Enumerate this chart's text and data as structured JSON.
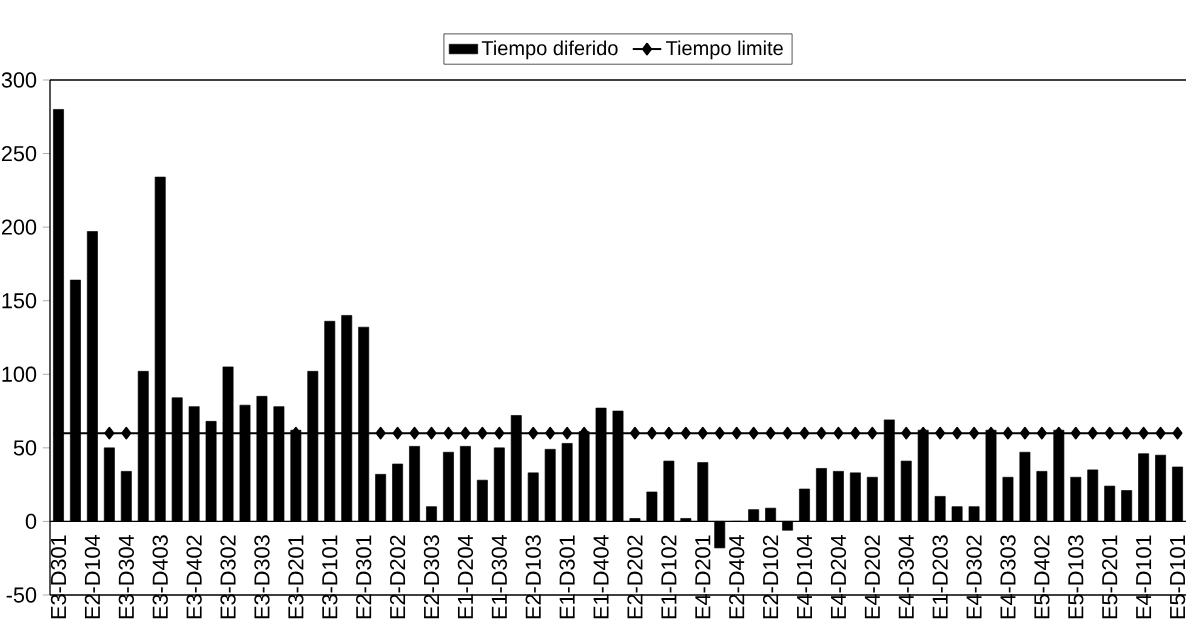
{
  "chart_data": {
    "type": "bar",
    "categories": [
      "E3-D301",
      null,
      "E2-D104",
      null,
      "E3-D304",
      null,
      "E3-D403",
      null,
      "E3-D402",
      null,
      "E3-D302",
      null,
      "E3-D303",
      null,
      "E3-D201",
      null,
      "E3-D101",
      null,
      "E2-D301",
      null,
      "E2-D202",
      null,
      "E2-D303",
      null,
      "E1-D204",
      null,
      "E1-D304",
      null,
      "E2-D103",
      null,
      "E1-D301",
      null,
      "E1-D404",
      null,
      "E2-D202",
      null,
      "E1-D102",
      null,
      "E4-D201",
      null,
      "E2-D404",
      null,
      "E2-D102",
      null,
      "E4-D104",
      null,
      "E4-D204",
      null,
      "E4-D202",
      null,
      "E4-D304",
      null,
      "E1-D203",
      null,
      "E4-D302",
      null,
      "E4-D303",
      null,
      "E5-D402",
      null,
      "E5-D103",
      null,
      "E5-D201",
      null,
      "E4-D101",
      null,
      "E5-D101"
    ],
    "series": [
      {
        "name": "Tiempo diferido",
        "color": "#000000",
        "values": [
          280,
          164,
          197,
          50,
          34,
          102,
          234,
          84,
          78,
          68,
          105,
          79,
          85,
          78,
          62,
          102,
          136,
          140,
          132,
          32,
          39,
          51,
          10,
          47,
          51,
          28,
          50,
          72,
          33,
          49,
          53,
          61,
          77,
          75,
          2,
          20,
          41,
          2,
          40,
          -18,
          0,
          8,
          9,
          -6,
          22,
          36,
          34,
          33,
          30,
          69,
          41,
          62,
          17,
          10,
          10,
          62,
          30,
          47,
          34,
          62,
          30,
          35,
          24,
          21,
          46,
          45,
          37
        ]
      },
      {
        "name": "Tiempo limite",
        "type": "line",
        "color": "#000000",
        "marker": "diamond",
        "values": [
          60,
          60,
          60,
          60,
          60,
          60,
          60,
          60,
          60,
          60,
          60,
          60,
          60,
          60,
          60,
          60,
          60,
          60,
          60,
          60,
          60,
          60,
          60,
          60,
          60,
          60,
          60,
          60,
          60,
          60,
          60,
          60,
          60,
          60,
          60,
          60,
          60,
          60,
          60,
          60,
          60,
          60,
          60,
          60,
          60,
          60,
          60,
          60,
          60,
          60,
          60,
          60,
          60,
          60,
          60,
          60,
          60,
          60,
          60,
          60,
          60,
          60,
          60,
          60,
          60,
          60,
          60
        ]
      }
    ],
    "ylim": [
      -50,
      300
    ],
    "yticks": [
      -50,
      0,
      50,
      100,
      150,
      200,
      250,
      300
    ],
    "legend": "top"
  }
}
